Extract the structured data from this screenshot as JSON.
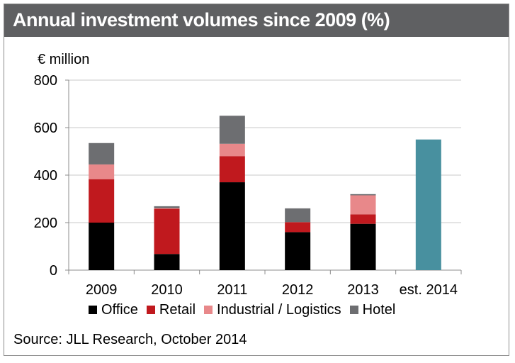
{
  "header": {
    "title": "Annual investment volumes since 2009 (%)"
  },
  "footer": {
    "source": "Source: JLL Research, October 2014"
  },
  "colors": {
    "title_bar": "#5f6062",
    "Office": "#000000",
    "Retail": "#c0191e",
    "Industrial / Logistics": "#e8888a",
    "Hotel": "#6d6e71",
    "estimate": "#48909f",
    "grid": "#c8c8c8"
  },
  "chart_data": {
    "type": "bar",
    "stacked": true,
    "ylabel": "€ million",
    "ylim": [
      0,
      800
    ],
    "yticks": [
      0,
      200,
      400,
      600,
      800
    ],
    "grid": true,
    "legend_position": "bottom",
    "categories": [
      "2009",
      "2010",
      "2011",
      "2012",
      "2013",
      "est. 2014"
    ],
    "series": [
      {
        "name": "Office",
        "values": [
          200,
          68,
          370,
          160,
          195,
          null
        ]
      },
      {
        "name": "Retail",
        "values": [
          183,
          190,
          110,
          42,
          40,
          null
        ]
      },
      {
        "name": "Industrial / Logistics",
        "values": [
          62,
          3,
          52,
          0,
          80,
          null
        ]
      },
      {
        "name": "Hotel",
        "values": [
          90,
          8,
          118,
          58,
          5,
          null
        ]
      }
    ],
    "estimate": {
      "category": "est. 2014",
      "value": 550
    }
  }
}
